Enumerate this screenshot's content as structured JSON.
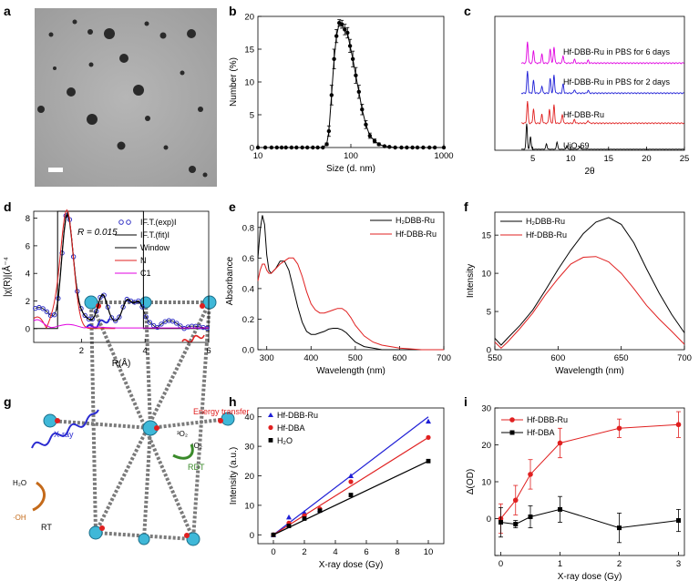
{
  "panel_letters": [
    "a",
    "b",
    "c",
    "d",
    "e",
    "f",
    "g",
    "h",
    "i"
  ],
  "schematic": {
    "xray": "X-ray",
    "energy_transfer": "Energy transfer",
    "o2": "³O₂",
    "o2_singlet": "¹O₂",
    "rdt": "RDT",
    "h2o": "H₂O",
    "oh": "·OH",
    "rt": "RT"
  },
  "colors": {
    "black": "#000000",
    "blue": "#1f1fd6",
    "red": "#e02020",
    "magenta": "#e000e0",
    "circle_blue": "#2020c0"
  },
  "chart_data": [
    {
      "id": "b",
      "type": "line",
      "xlabel": "Size (d. nm)",
      "ylabel": "Number (%)",
      "xscale": "log",
      "xlim": [
        10,
        1000
      ],
      "ylim": [
        0,
        20
      ],
      "xticks": [
        10,
        100,
        1000
      ],
      "xtick_labels": [
        "10",
        "100",
        "1000"
      ],
      "yticks": [
        0,
        5,
        10,
        15,
        20
      ],
      "ytick_labels": [
        "0",
        "5",
        "10",
        "15",
        "20"
      ],
      "x": [
        10,
        12,
        14,
        16,
        18,
        20,
        23,
        26,
        30,
        34,
        39,
        44,
        50,
        55,
        58,
        62,
        66,
        70,
        75,
        80,
        86,
        92,
        98,
        105,
        113,
        122,
        132,
        145,
        160,
        180,
        200,
        230,
        260,
        300,
        350,
        400,
        460,
        520,
        600,
        700,
        800,
        1000
      ],
      "y": [
        0,
        0,
        0,
        0,
        0,
        0,
        0,
        0,
        0,
        0,
        0,
        0,
        0,
        0.5,
        2.5,
        8,
        13.5,
        17,
        19,
        18.8,
        18,
        17.5,
        15.5,
        13.5,
        11,
        8.5,
        5.8,
        3.5,
        1.8,
        1,
        0.5,
        0.2,
        0.1,
        0,
        0,
        0,
        0,
        0,
        0,
        0,
        0,
        0
      ],
      "err": [
        0,
        0,
        0,
        0,
        0,
        0,
        0,
        0,
        0,
        0,
        0,
        0,
        0,
        0.2,
        0.8,
        1.5,
        1.5,
        1,
        0.5,
        0.6,
        0.8,
        0.8,
        1,
        1.2,
        1.2,
        1,
        0.8,
        0.6,
        0.4,
        0.3,
        0.2,
        0,
        0,
        0,
        0,
        0,
        0,
        0,
        0,
        0,
        0,
        0
      ]
    },
    {
      "id": "c",
      "type": "line",
      "xlabel": "2θ",
      "xlim": [
        0,
        25
      ],
      "xticks": [
        5,
        10,
        15,
        20,
        25
      ],
      "xtick_labels": [
        "5",
        "10",
        "15",
        "20",
        "25"
      ],
      "series": [
        {
          "name": "UiO-69",
          "color": "#000000",
          "offset": 0,
          "peaks": [
            [
              4.2,
              14
            ],
            [
              4.7,
              7
            ],
            [
              6.8,
              3
            ],
            [
              8.2,
              4
            ],
            [
              9.5,
              2
            ],
            [
              11.2,
              1.5
            ]
          ]
        },
        {
          "name": "Hf-DBB-Ru",
          "color": "#e02020",
          "offset": 1,
          "peaks": [
            [
              4.3,
              12
            ],
            [
              5.1,
              8
            ],
            [
              6.2,
              5
            ],
            [
              7.2,
              8
            ],
            [
              7.8,
              10
            ],
            [
              8.9,
              5
            ],
            [
              10.5,
              2
            ],
            [
              12.3,
              1.5
            ]
          ]
        },
        {
          "name": "Hf-DBB-Ru in PBS for 2 days",
          "color": "#1f1fd6",
          "offset": 2,
          "peaks": [
            [
              4.3,
              12
            ],
            [
              5.1,
              7
            ],
            [
              6.2,
              4
            ],
            [
              7.3,
              8
            ],
            [
              7.8,
              10
            ],
            [
              9,
              5
            ],
            [
              10.5,
              2
            ],
            [
              12.3,
              1.5
            ]
          ]
        },
        {
          "name": "Hf-DBB-Ru in PBS for 6 days",
          "color": "#e000e0",
          "offset": 3,
          "peaks": [
            [
              4.3,
              12
            ],
            [
              5.1,
              7
            ],
            [
              6.2,
              5
            ],
            [
              7.3,
              8
            ],
            [
              7.8,
              9
            ],
            [
              9,
              4
            ],
            [
              10.5,
              2
            ],
            [
              12.3,
              1.5
            ]
          ]
        }
      ]
    },
    {
      "id": "d",
      "type": "line",
      "xlabel": "R(Å)",
      "ylabel": "|χ(R)|(Å⁻⁴",
      "annotation": "R = 0.015",
      "xlim": [
        0.5,
        6
      ],
      "ylim": [
        -1,
        8.5
      ],
      "xticks": [
        2,
        4,
        6
      ],
      "xtick_labels": [
        "2",
        "4",
        "6"
      ],
      "yticks": [
        0,
        2,
        4,
        6,
        8
      ],
      "ytick_labels": [
        "0",
        "2",
        "4",
        "6",
        "8"
      ],
      "legend": [
        "IF.T.(exp)I",
        "IF.T.(fit)I",
        "Window",
        "N",
        "C1"
      ]
    },
    {
      "id": "e",
      "type": "line",
      "xlabel": "Wavelength (nm)",
      "ylabel": "Absorbance",
      "xlim": [
        280,
        700
      ],
      "ylim": [
        0,
        0.9
      ],
      "xticks": [
        300,
        400,
        500,
        600,
        700
      ],
      "xtick_labels": [
        "300",
        "400",
        "500",
        "600",
        "700"
      ],
      "yticks": [
        0,
        0.2,
        0.4,
        0.6,
        0.8
      ],
      "ytick_labels": [
        "0.0",
        "0.2",
        "0.4",
        "0.6",
        "0.8"
      ],
      "series": [
        {
          "name": "H₂DBB-Ru",
          "color": "#000000",
          "x": [
            280,
            285,
            290,
            295,
            300,
            305,
            310,
            320,
            330,
            340,
            350,
            360,
            370,
            380,
            390,
            400,
            410,
            420,
            430,
            440,
            450,
            460,
            470,
            480,
            490,
            500,
            520,
            540,
            560,
            600,
            650,
            700
          ],
          "y": [
            0.6,
            0.78,
            0.88,
            0.82,
            0.62,
            0.52,
            0.5,
            0.53,
            0.58,
            0.58,
            0.52,
            0.4,
            0.28,
            0.18,
            0.12,
            0.1,
            0.1,
            0.11,
            0.12,
            0.135,
            0.14,
            0.14,
            0.13,
            0.11,
            0.08,
            0.05,
            0.02,
            0.01,
            0,
            0,
            0,
            0
          ]
        },
        {
          "name": "Hf-DBB-Ru",
          "color": "#e02020",
          "x": [
            280,
            285,
            290,
            295,
            300,
            305,
            310,
            320,
            330,
            340,
            350,
            360,
            370,
            380,
            390,
            400,
            410,
            420,
            430,
            440,
            450,
            460,
            470,
            480,
            490,
            500,
            520,
            540,
            560,
            600,
            650,
            700
          ],
          "y": [
            0.45,
            0.52,
            0.56,
            0.56,
            0.52,
            0.5,
            0.5,
            0.53,
            0.56,
            0.58,
            0.6,
            0.6,
            0.56,
            0.48,
            0.38,
            0.3,
            0.26,
            0.24,
            0.24,
            0.25,
            0.26,
            0.27,
            0.27,
            0.25,
            0.21,
            0.16,
            0.09,
            0.05,
            0.03,
            0.01,
            0,
            0
          ]
        }
      ]
    },
    {
      "id": "f",
      "type": "line",
      "xlabel": "Wavelength (nm)",
      "ylabel": "Intensity",
      "xlim": [
        550,
        700
      ],
      "ylim": [
        0,
        18
      ],
      "xticks": [
        550,
        600,
        650,
        700
      ],
      "xtick_labels": [
        "550",
        "600",
        "650",
        "700"
      ],
      "yticks": [
        0,
        5,
        10,
        15
      ],
      "ytick_labels": [
        "0",
        "5",
        "10",
        "15"
      ],
      "series": [
        {
          "name": "H₂DBB-Ru",
          "color": "#000000",
          "x": [
            550,
            555,
            560,
            570,
            580,
            590,
            600,
            610,
            620,
            630,
            640,
            650,
            660,
            670,
            680,
            690,
            700
          ],
          "y": [
            1.5,
            0.6,
            1.5,
            3.2,
            5.2,
            7.8,
            10.5,
            13,
            15.2,
            16.7,
            17.3,
            16.4,
            14,
            10.6,
            7.4,
            4.6,
            2.2
          ]
        },
        {
          "name": "Hf-DBB-Ru",
          "color": "#e02020",
          "x": [
            550,
            555,
            560,
            570,
            580,
            590,
            600,
            610,
            620,
            630,
            640,
            650,
            660,
            670,
            680,
            690,
            700
          ],
          "y": [
            1.0,
            0.2,
            1.0,
            2.8,
            4.8,
            7.2,
            9.3,
            11.2,
            12.1,
            12.2,
            11.5,
            10,
            8,
            5.8,
            4,
            2.4,
            0.7
          ]
        }
      ]
    },
    {
      "id": "h",
      "type": "scatter",
      "xlabel": "X-ray dose (Gy)",
      "ylabel": "Intensity (a.u.)",
      "xlim": [
        -1,
        11
      ],
      "ylim": [
        -3,
        43
      ],
      "xticks": [
        0,
        2,
        4,
        6,
        8,
        10
      ],
      "xtick_labels": [
        "0",
        "2",
        "4",
        "6",
        "8",
        "10"
      ],
      "yticks": [
        0,
        10,
        20,
        30,
        40
      ],
      "ytick_labels": [
        "0",
        "10",
        "20",
        "30",
        "40"
      ],
      "series": [
        {
          "name": "Hf-DBB-Ru",
          "color": "#1f1fd6",
          "marker": "triangle",
          "x": [
            0,
            1,
            2,
            3,
            5,
            10
          ],
          "y": [
            0,
            6,
            7.5,
            8.5,
            20,
            38.5
          ],
          "fit": [
            0,
            4
          ]
        },
        {
          "name": "Hf-DBA",
          "color": "#e02020",
          "marker": "circle",
          "x": [
            0,
            1,
            2,
            3,
            5,
            10
          ],
          "y": [
            0,
            4,
            6.5,
            8.8,
            18,
            33
          ],
          "fit": [
            0,
            3.3
          ]
        },
        {
          "name": "H₂O",
          "color": "#000000",
          "marker": "square",
          "x": [
            0,
            1,
            2,
            3,
            5,
            10
          ],
          "y": [
            0,
            3,
            5.5,
            8.2,
            13.5,
            25
          ],
          "fit": [
            0,
            2.5
          ]
        }
      ]
    },
    {
      "id": "i",
      "type": "line",
      "xlabel": "X-ray dose (Gy)",
      "ylabel": "Δ(OD)",
      "xlim": [
        -0.1,
        3.1
      ],
      "ylim": [
        -10,
        30
      ],
      "xticks": [
        0,
        1,
        2,
        3
      ],
      "xtick_labels": [
        "0",
        "1",
        "2",
        "3"
      ],
      "yticks": [
        -10,
        0,
        10,
        20,
        30
      ],
      "ytick_labels": [
        "",
        "0",
        "10",
        "20",
        "30"
      ],
      "series": [
        {
          "name": "Hf-DBB-Ru",
          "color": "#e02020",
          "marker": "circle",
          "x": [
            0,
            0.25,
            0.5,
            1,
            2,
            3
          ],
          "y": [
            0,
            5,
            12,
            20.5,
            24.5,
            25.5
          ],
          "err": [
            4,
            4,
            4,
            4,
            2.5,
            3.5
          ]
        },
        {
          "name": "Hf-DBA",
          "color": "#000000",
          "marker": "square",
          "x": [
            0,
            0.25,
            0.5,
            1,
            2,
            3
          ],
          "y": [
            -1,
            -1.5,
            0.5,
            2.5,
            -2.5,
            -0.5
          ],
          "err": [
            4,
            1,
            3,
            3.5,
            4,
            3
          ]
        }
      ]
    }
  ]
}
